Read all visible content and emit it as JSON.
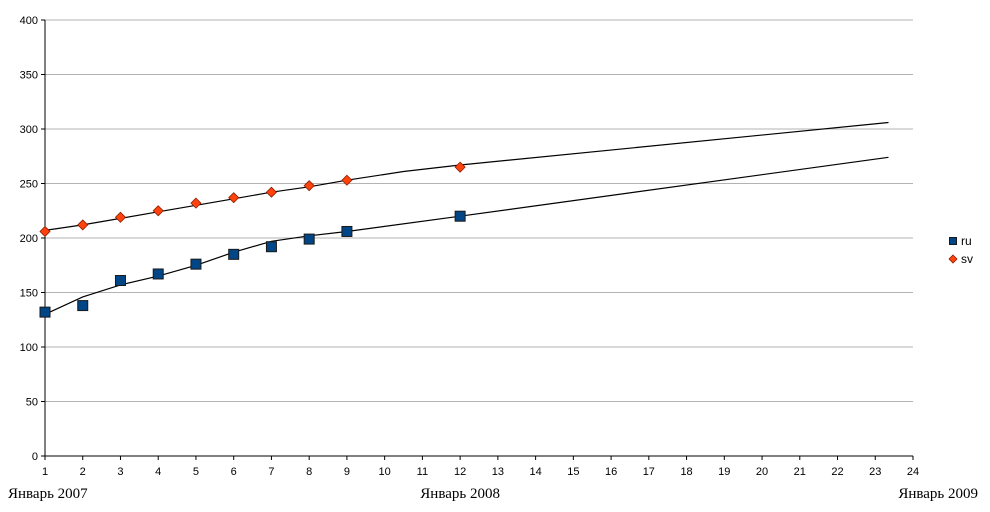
{
  "chart_data": {
    "type": "scatter",
    "title": "",
    "xlabel": "",
    "ylabel": "",
    "xlim": [
      1,
      24
    ],
    "ylim": [
      0,
      400
    ],
    "y_ticks": [
      0,
      50,
      100,
      150,
      200,
      250,
      300,
      350,
      400
    ],
    "x_ticks": [
      1,
      2,
      3,
      4,
      5,
      6,
      7,
      8,
      9,
      10,
      11,
      12,
      13,
      14,
      15,
      16,
      17,
      18,
      19,
      20,
      21,
      22,
      23,
      24
    ],
    "grid": true,
    "legend_position": "right",
    "date_labels": [
      {
        "x": 1,
        "text": "Январь 2007"
      },
      {
        "x": 12,
        "text": "Январь 2008"
      },
      {
        "x": 24,
        "text": "Январь 2009"
      }
    ],
    "series": [
      {
        "name": "ru",
        "marker": "square",
        "color": "#004586",
        "x": [
          1,
          2,
          3,
          4,
          5,
          6,
          7,
          8,
          9,
          12
        ],
        "y": [
          132,
          138,
          161,
          167,
          176,
          185,
          192,
          199,
          206,
          220
        ],
        "trend": {
          "x": [
            1,
            2,
            3,
            4,
            5,
            6,
            7,
            8,
            9,
            12,
            23.35
          ],
          "y": [
            130,
            146,
            157,
            165,
            175,
            187,
            197,
            202,
            206,
            220,
            274
          ]
        }
      },
      {
        "name": "sv",
        "marker": "diamond",
        "color": "#ff420e",
        "x": [
          1,
          2,
          3,
          4,
          5,
          6,
          7,
          8,
          9,
          12
        ],
        "y": [
          206,
          212,
          219,
          225,
          232,
          237,
          242,
          248,
          253,
          265
        ],
        "trend": {
          "x": [
            1,
            2,
            3,
            4,
            5,
            6,
            7,
            8,
            9,
            10.5,
            12,
            23.35
          ],
          "y": [
            207,
            212,
            218,
            224,
            230,
            236,
            242,
            247,
            253,
            261,
            267,
            306
          ]
        }
      }
    ]
  }
}
